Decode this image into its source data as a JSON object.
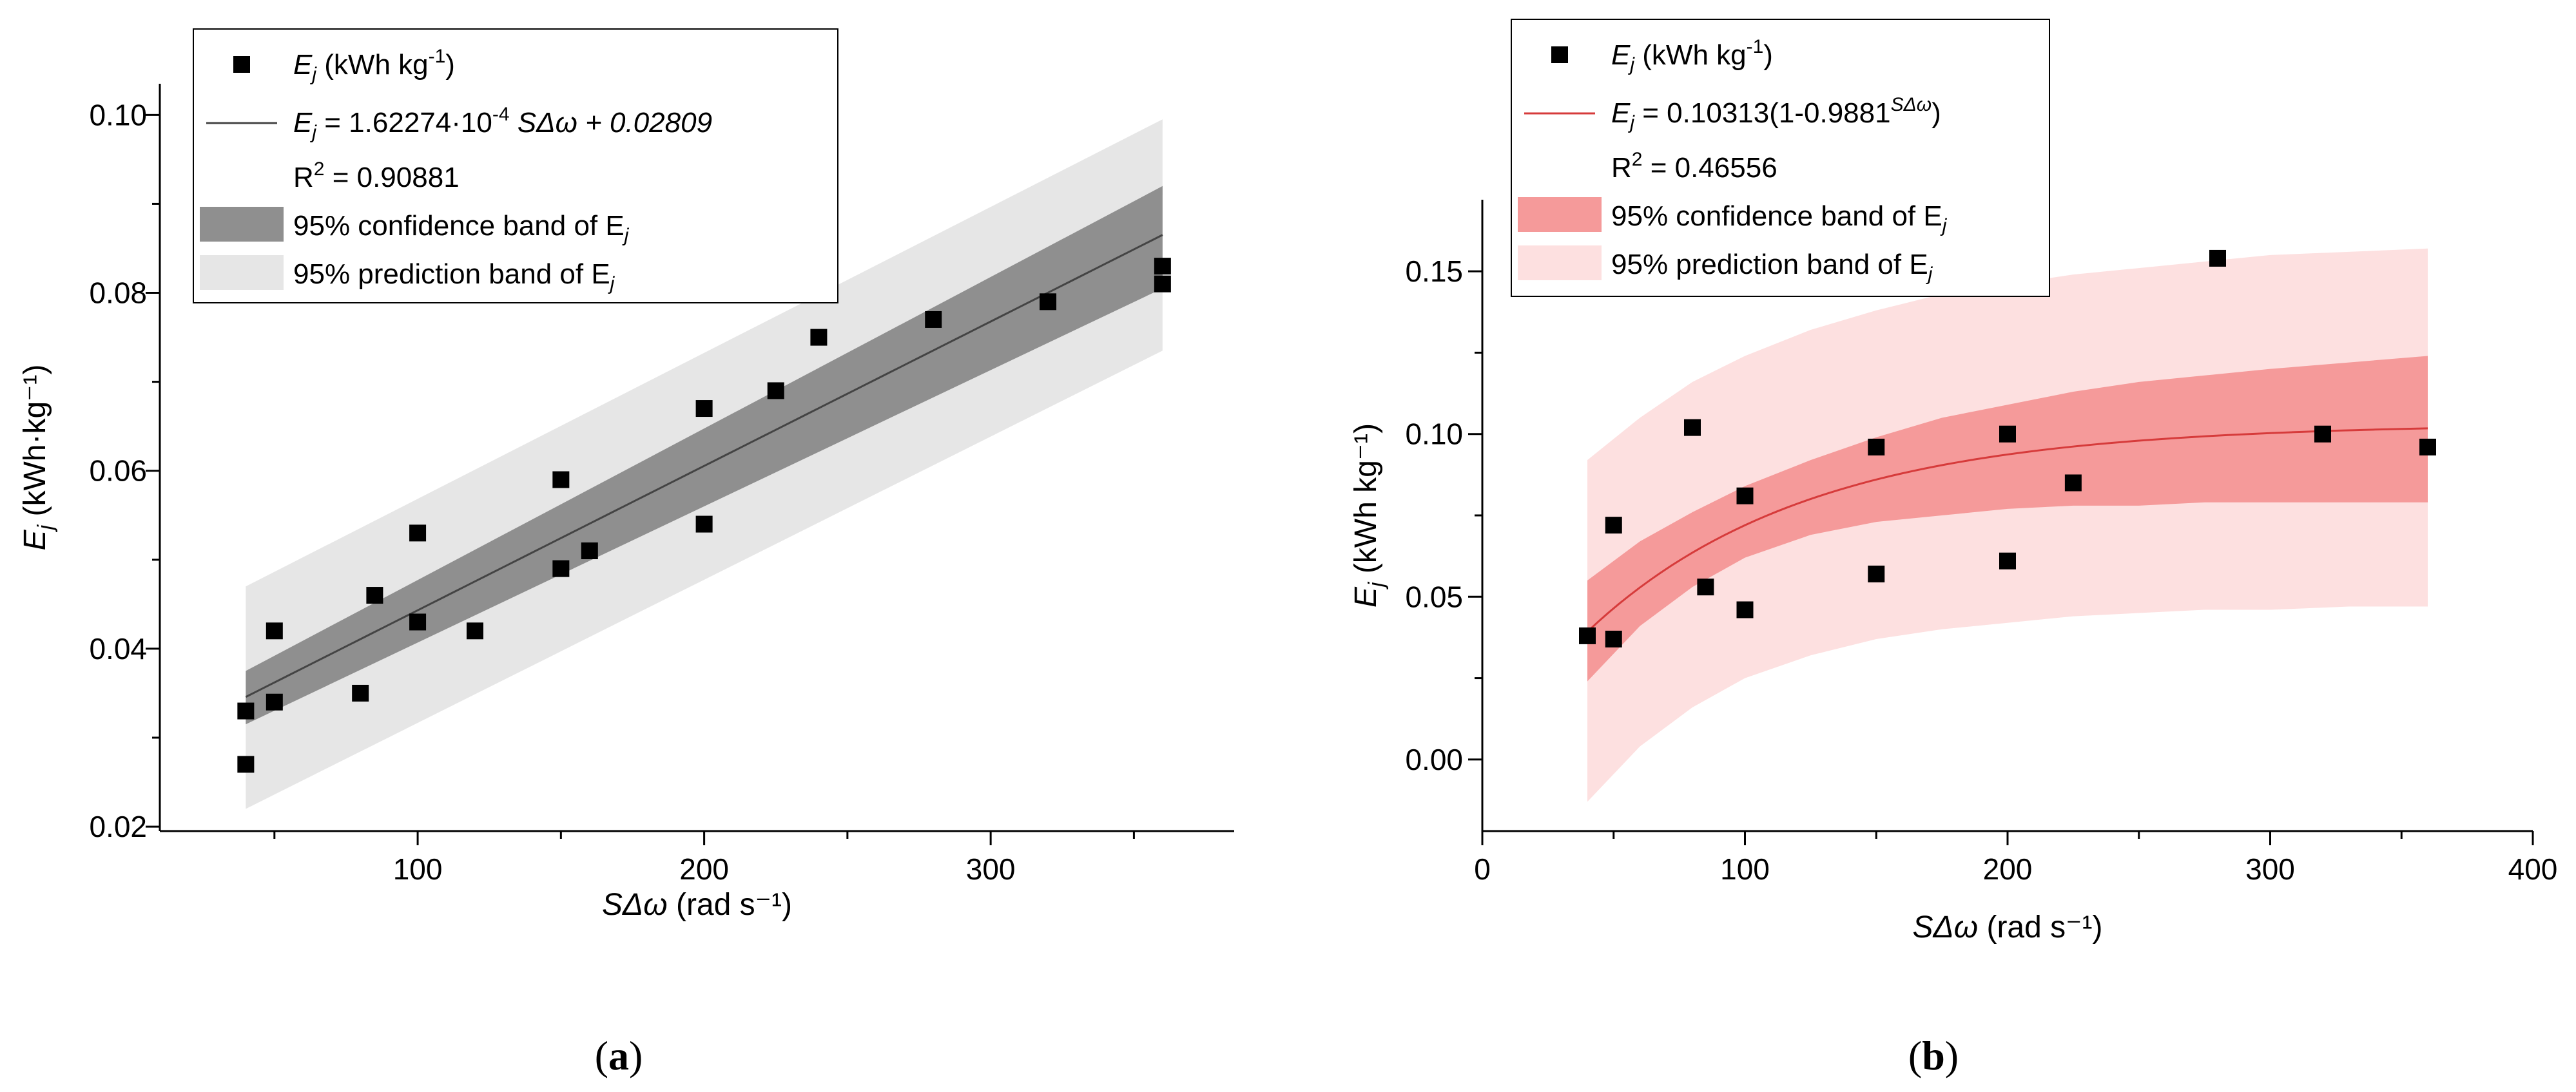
{
  "chart_data": [
    {
      "type": "scatter",
      "panel_label": "(a)",
      "panel_letter": "a",
      "xlabel": "SΔω (rad s⁻¹)",
      "ylabel": "Ej (kWh·kg⁻¹)",
      "xlim": [
        10,
        385
      ],
      "ylim": [
        0.0195,
        0.1035
      ],
      "xticks": [
        100,
        200,
        300
      ],
      "xtick_labels": [
        "100",
        "200",
        "300"
      ],
      "yticks": [
        0.02,
        0.04,
        0.06,
        0.08,
        0.1
      ],
      "ytick_labels": [
        "0.02",
        "0.04",
        "0.06",
        "0.08",
        "0.10"
      ],
      "series": [
        {
          "name": "Ej (kWh kg⁻¹)",
          "kind": "scatter",
          "color": "#000000",
          "points": [
            [
              40,
              0.033
            ],
            [
              40,
              0.027
            ],
            [
              50,
              0.042
            ],
            [
              50,
              0.034
            ],
            [
              80,
              0.035
            ],
            [
              85,
              0.046
            ],
            [
              100,
              0.053
            ],
            [
              100,
              0.043
            ],
            [
              120,
              0.042
            ],
            [
              150,
              0.059
            ],
            [
              150,
              0.049
            ],
            [
              160,
              0.051
            ],
            [
              200,
              0.067
            ],
            [
              200,
              0.054
            ],
            [
              225,
              0.069
            ],
            [
              240,
              0.075
            ],
            [
              280,
              0.077
            ],
            [
              320,
              0.079
            ],
            [
              360,
              0.083
            ],
            [
              360,
              0.081
            ]
          ]
        },
        {
          "name": "Ej = 1.62274·10⁻⁴ SΔω + 0.02809",
          "kind": "line",
          "model": "linear",
          "color": "#444444",
          "slope": 0.000162274,
          "intercept": 0.02809,
          "x_range": [
            40,
            360
          ]
        }
      ],
      "bands": {
        "x": [
          40,
          360
        ],
        "confidence_lower": [
          0.0315,
          0.0805
        ],
        "confidence_upper": [
          0.0375,
          0.092
        ],
        "prediction_lower": [
          0.022,
          0.0735
        ],
        "prediction_upper": [
          0.047,
          0.0995
        ]
      },
      "colors": {
        "confidence": "#8f8f8f",
        "prediction": "#e6e6e6"
      },
      "legend": {
        "scatter_label": "E",
        "scatter_sub": "j",
        "scatter_unit": " (kWh kg",
        "scatter_unit_sup": "-1",
        "scatter_unit_end": ")",
        "fit_prefix": "E",
        "fit_sub": "j",
        "fit_eq": " = 1.62274·10",
        "fit_eq_sup": "-4",
        "fit_eq_end": " SΔω + 0.02809",
        "r2_prefix": "R",
        "r2_sup": "2",
        "r2_value": " = 0.90881",
        "confidence_label": "95% confidence band of E",
        "confidence_sub": "j",
        "prediction_label": "95% prediction band of E",
        "prediction_sub": "j"
      }
    },
    {
      "type": "scatter",
      "panel_label": "(b)",
      "panel_letter": "b",
      "xlabel": "SΔω (rad s⁻¹)",
      "ylabel": "Ej (kWh kg⁻¹)",
      "xlim": [
        0,
        400
      ],
      "ylim": [
        -0.022,
        0.172
      ],
      "xticks": [
        0,
        100,
        200,
        300,
        400
      ],
      "xtick_labels": [
        "0",
        "100",
        "200",
        "300",
        "400"
      ],
      "yticks": [
        0.0,
        0.05,
        0.1,
        0.15
      ],
      "ytick_labels": [
        "0.00",
        "0.05",
        "0.10",
        "0.15"
      ],
      "series": [
        {
          "name": "Ej (kWh kg⁻¹)",
          "kind": "scatter",
          "color": "#000000",
          "points": [
            [
              40,
              0.038
            ],
            [
              50,
              0.072
            ],
            [
              50,
              0.037
            ],
            [
              80,
              0.102
            ],
            [
              85,
              0.053
            ],
            [
              100,
              0.081
            ],
            [
              100,
              0.046
            ],
            [
              150,
              0.096
            ],
            [
              150,
              0.057
            ],
            [
              200,
              0.1
            ],
            [
              200,
              0.061
            ],
            [
              225,
              0.085
            ],
            [
              280,
              0.154
            ],
            [
              320,
              0.1
            ],
            [
              360,
              0.096
            ]
          ]
        },
        {
          "name": "Ej = 0.10313(1-0.9881^SΔω)",
          "kind": "line",
          "model": "exponential",
          "color": "#d63b3b",
          "a": 0.10313,
          "b": 0.9881,
          "x_range": [
            40,
            360
          ]
        }
      ],
      "bands": {
        "x": [
          40,
          60,
          80,
          100,
          125,
          150,
          175,
          200,
          225,
          250,
          275,
          300,
          330,
          360
        ],
        "confidence_lower": [
          0.024,
          0.041,
          0.053,
          0.062,
          0.069,
          0.073,
          0.075,
          0.077,
          0.078,
          0.078,
          0.079,
          0.079,
          0.079,
          0.079
        ],
        "confidence_upper": [
          0.055,
          0.067,
          0.076,
          0.084,
          0.092,
          0.099,
          0.105,
          0.109,
          0.113,
          0.116,
          0.118,
          0.12,
          0.122,
          0.124
        ],
        "prediction_lower": [
          -0.013,
          0.004,
          0.016,
          0.025,
          0.032,
          0.037,
          0.04,
          0.042,
          0.044,
          0.045,
          0.046,
          0.046,
          0.047,
          0.047
        ],
        "prediction_upper": [
          0.092,
          0.105,
          0.116,
          0.124,
          0.132,
          0.138,
          0.143,
          0.146,
          0.149,
          0.151,
          0.153,
          0.155,
          0.156,
          0.157
        ]
      },
      "colors": {
        "confidence": "#f59a9a",
        "prediction": "#fde0e0"
      },
      "legend": {
        "scatter_label": "E",
        "scatter_sub": "j",
        "scatter_unit": " (kWh kg",
        "scatter_unit_sup": "-1",
        "scatter_unit_end": ")",
        "fit_prefix": "E",
        "fit_sub": "j",
        "fit_eq": " = 0.10313(1-0.9881",
        "fit_eq_sup": "SΔω",
        "fit_eq_end": ")",
        "r2_prefix": "R",
        "r2_sup": "2",
        "r2_value": " = 0.46556",
        "confidence_label": "95% confidence band of E",
        "confidence_sub": "j",
        "prediction_label": "95% prediction band of E",
        "prediction_sub": "j"
      }
    }
  ]
}
